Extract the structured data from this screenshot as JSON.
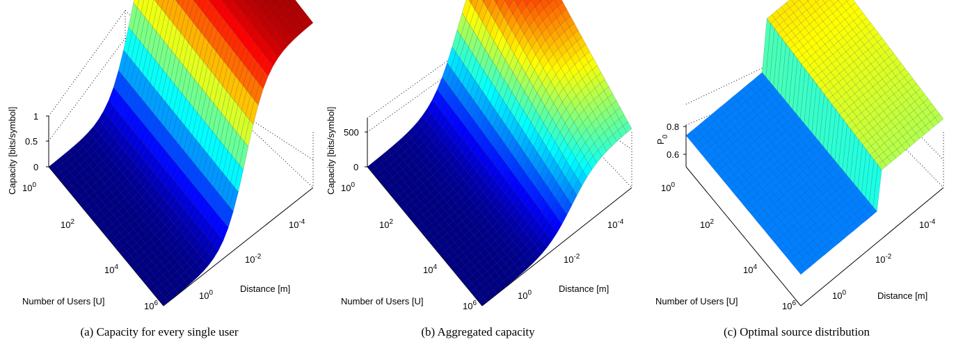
{
  "chart_data": [
    {
      "type": "surface",
      "caption": "(a) Capacity for every single user",
      "xlabel": "Distance [m]",
      "ylabel": "Number of Users [U]",
      "zlabel": "Capacity [bits/symbol]",
      "x_ticks": [
        {
          "base": "10",
          "exp": "0"
        },
        {
          "base": "10",
          "exp": "-2"
        },
        {
          "base": "10",
          "exp": "-4"
        }
      ],
      "y_ticks": [
        {
          "base": "10",
          "exp": "0"
        },
        {
          "base": "10",
          "exp": "2"
        },
        {
          "base": "10",
          "exp": "4"
        },
        {
          "base": "10",
          "exp": "6"
        }
      ],
      "z_ticks": [
        "0",
        "0.5",
        "1"
      ],
      "zlim": [
        0,
        1
      ],
      "scale": {
        "x": "log",
        "y": "log"
      },
      "colormap": "jet",
      "surface_profile": {
        "kind": "sigmoid_in_distance",
        "near_value": 1.0,
        "far_value": 0.0,
        "user_effect": "small"
      }
    },
    {
      "type": "surface",
      "caption": "(b) Aggregated capacity",
      "xlabel": "Distance [m]",
      "ylabel": "Number of Users [U]",
      "zlabel": "Capacity [bits/symbol]",
      "x_ticks": [
        {
          "base": "10",
          "exp": "0"
        },
        {
          "base": "10",
          "exp": "-2"
        },
        {
          "base": "10",
          "exp": "-4"
        }
      ],
      "y_ticks": [
        {
          "base": "10",
          "exp": "0"
        },
        {
          "base": "10",
          "exp": "2"
        },
        {
          "base": "10",
          "exp": "4"
        },
        {
          "base": "10",
          "exp": "6"
        }
      ],
      "z_ticks": [
        "0",
        "500"
      ],
      "zlim": [
        0,
        700
      ],
      "scale": {
        "x": "log",
        "y": "log"
      },
      "colormap": "jet",
      "surface_profile": {
        "kind": "sigmoid_times_users",
        "near_value": 600,
        "far_value": 0
      }
    },
    {
      "type": "surface",
      "caption": "(c) Optimal source distribution",
      "xlabel": "Distance [m]",
      "ylabel": "Number of Users [U]",
      "zlabel": "P",
      "zlabel_sub": "0",
      "x_ticks": [
        {
          "base": "10",
          "exp": "0"
        },
        {
          "base": "10",
          "exp": "-2"
        },
        {
          "base": "10",
          "exp": "-4"
        }
      ],
      "y_ticks": [
        {
          "base": "10",
          "exp": "0"
        },
        {
          "base": "10",
          "exp": "2"
        },
        {
          "base": "10",
          "exp": "4"
        },
        {
          "base": "10",
          "exp": "6"
        }
      ],
      "z_ticks": [
        "0.6",
        "0.8"
      ],
      "zlim": [
        0.5,
        0.9
      ],
      "scale": {
        "x": "log",
        "y": "log"
      },
      "colormap": "jet",
      "surface_profile": {
        "kind": "step_in_distance",
        "near_value": 0.9,
        "far_value": 0.5
      }
    }
  ]
}
